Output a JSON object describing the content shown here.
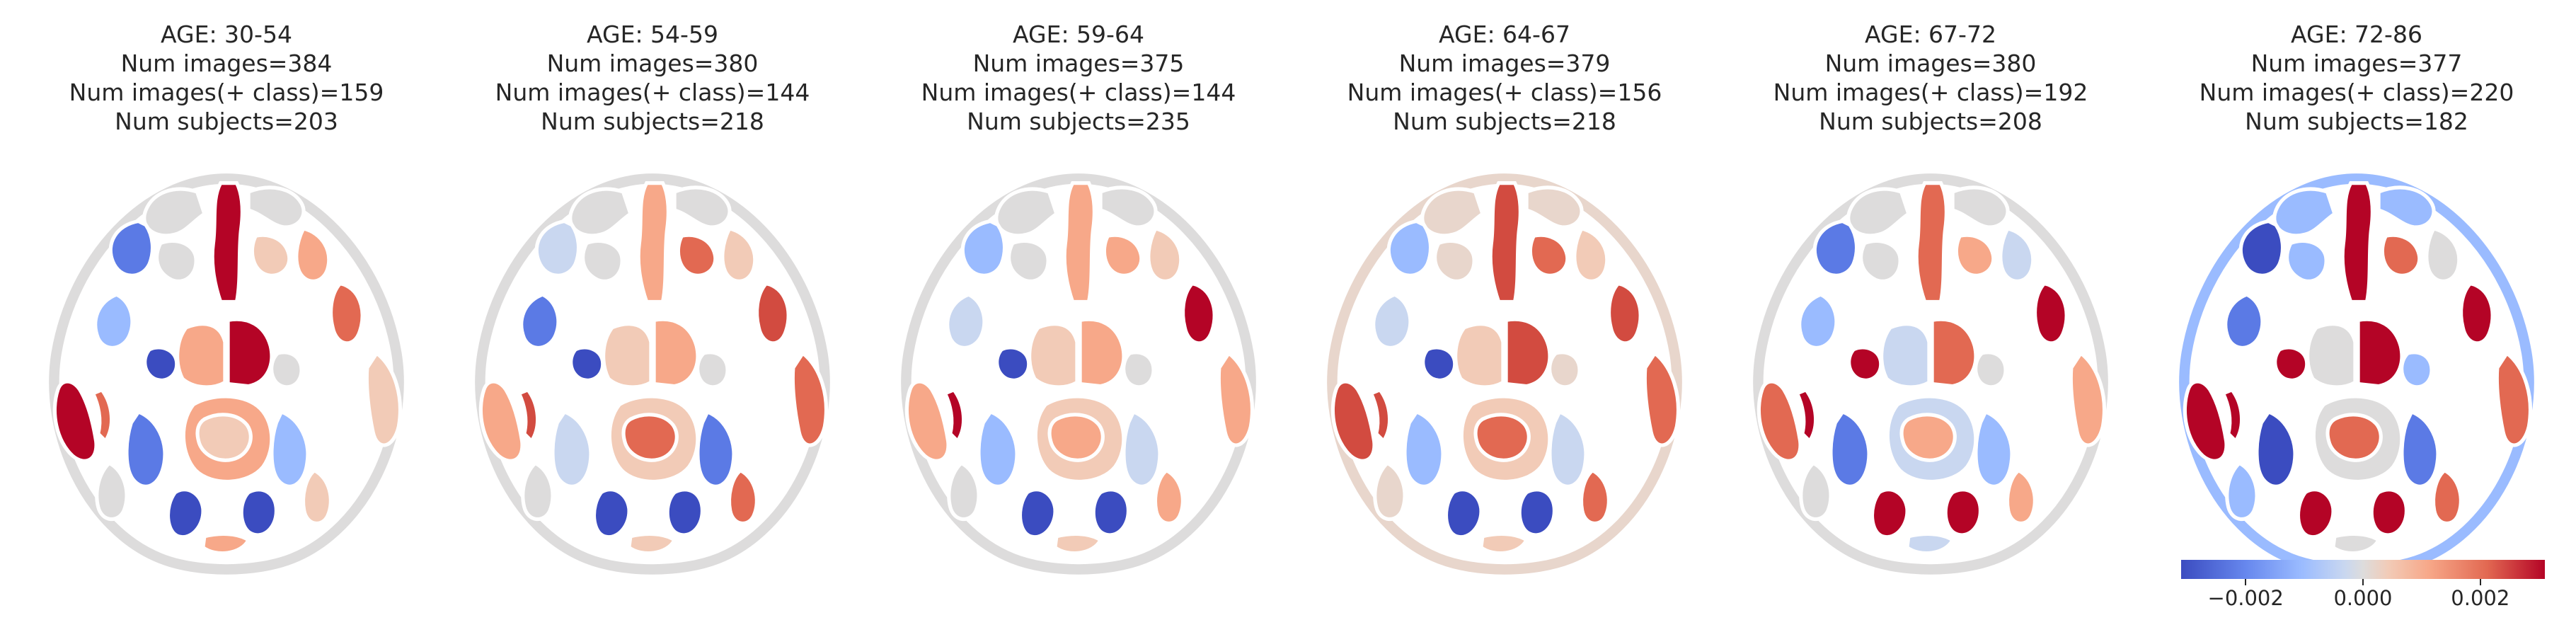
{
  "panels": [
    {
      "title": {
        "age": "AGE: 30-54",
        "images": "Num images=384",
        "pos_images": "Num images(+ class)=159",
        "subjects": "Num subjects=203"
      },
      "colors": {
        "a": "#b40426",
        "b": "#5b7ae5",
        "c": "#f7a889",
        "d": "#e26952",
        "e": "#3b4cc0",
        "f": "#dddcdc",
        "g": "#9abbff",
        "h": "#f2cbb7"
      }
    },
    {
      "title": {
        "age": "AGE: 54-59",
        "images": "Num images=380",
        "pos_images": "Num images(+ class)=144",
        "subjects": "Num subjects=218"
      },
      "colors": {
        "a": "#f7a889",
        "b": "#c9d7f0",
        "c": "#f2cbb7",
        "d": "#d24b40",
        "e": "#3b4cc0",
        "f": "#dddcdc",
        "g": "#5b7ae5",
        "h": "#e26952"
      }
    },
    {
      "title": {
        "age": "AGE: 59-64",
        "images": "Num images=375",
        "pos_images": "Num images(+ class)=144",
        "subjects": "Num subjects=235"
      },
      "colors": {
        "a": "#f7a889",
        "b": "#9abbff",
        "c": "#f2cbb7",
        "d": "#b40426",
        "e": "#3b4cc0",
        "f": "#dddcdc",
        "g": "#c9d7f0",
        "h": "#f7a889"
      }
    },
    {
      "title": {
        "age": "AGE: 64-67",
        "images": "Num images=379",
        "pos_images": "Num images(+ class)=156",
        "subjects": "Num subjects=218"
      },
      "colors": {
        "a": "#d24b40",
        "b": "#9abbff",
        "c": "#f2cbb7",
        "d": "#d24b40",
        "e": "#3b4cc0",
        "f": "#e8d6cc",
        "g": "#c9d7f0",
        "h": "#e26952"
      }
    },
    {
      "title": {
        "age": "AGE: 67-72",
        "images": "Num images=380",
        "pos_images": "Num images(+ class)=192",
        "subjects": "Num subjects=208"
      },
      "colors": {
        "a": "#e26952",
        "b": "#5b7ae5",
        "c": "#c9d7f0",
        "d": "#b40426",
        "e": "#b40426",
        "f": "#dddcdc",
        "g": "#9abbff",
        "h": "#f7a889"
      }
    },
    {
      "title": {
        "age": "AGE: 72-86",
        "images": "Num images=377",
        "pos_images": "Num images(+ class)=220",
        "subjects": "Num subjects=182"
      },
      "colors": {
        "a": "#b40426",
        "b": "#3b4cc0",
        "c": "#dddcdc",
        "d": "#b40426",
        "e": "#b40426",
        "f": "#9abbff",
        "g": "#5b7ae5",
        "h": "#e26952"
      }
    }
  ],
  "colorbar": {
    "ticks": [
      {
        "value": -0.002,
        "label": "−0.002"
      },
      {
        "value": 0.0,
        "label": "0.000"
      },
      {
        "value": 0.002,
        "label": "0.002"
      }
    ],
    "range": [
      -0.0031,
      0.0031
    ]
  }
}
